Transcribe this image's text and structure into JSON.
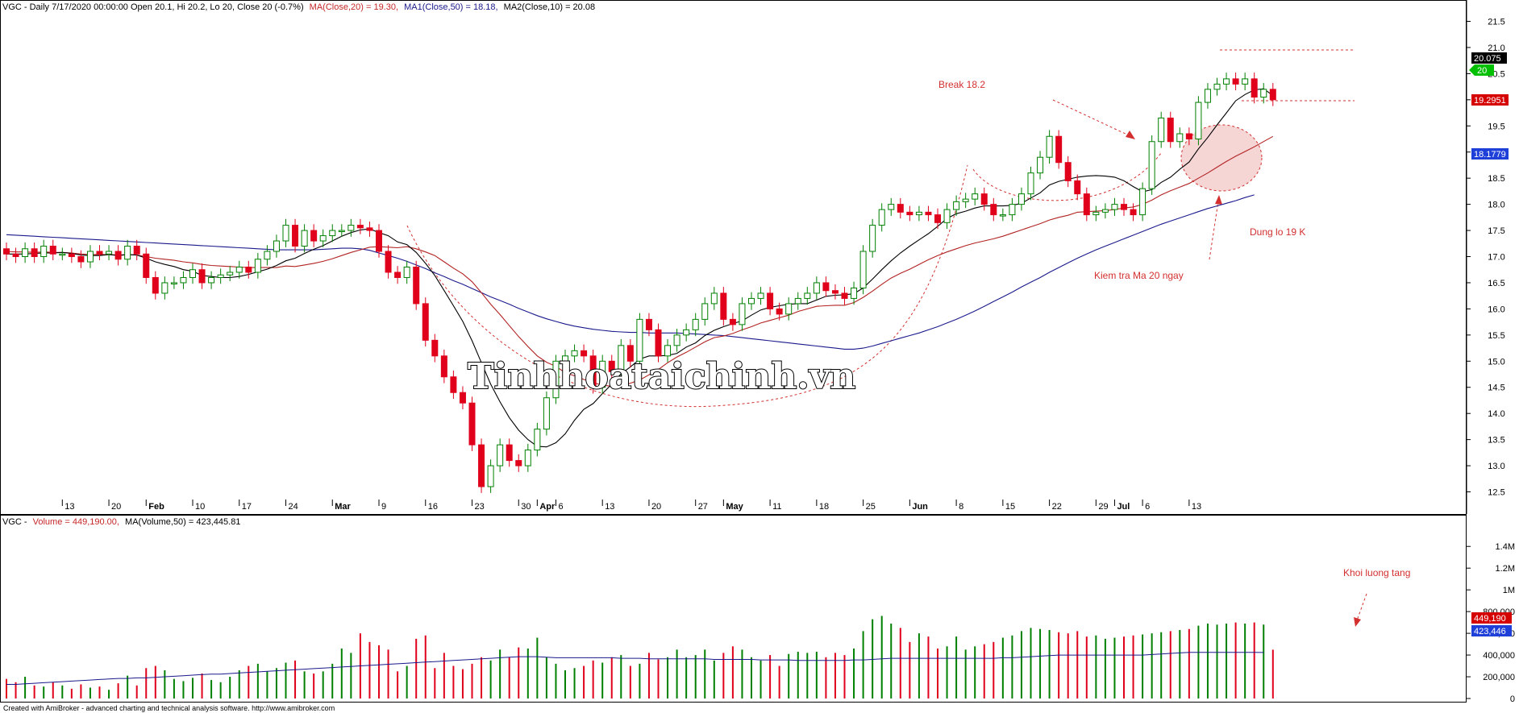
{
  "price_header": {
    "prefix": "VGC - Daily 7/17/2020 00:00:00 Open 20.1, Hi 20.2, Lo 20, Close 20 (-0.7%)",
    "ma20": "MA(Close,20) = 19.30,",
    "ma50": "MA1(Close,50) = 18.18,",
    "ma10": "MA2(Close,10) = 20.08"
  },
  "volume_header": {
    "prefix": "VGC -",
    "volume": "Volume = 449,190.00,",
    "ma": "MA(Volume,50) = 423,445.81"
  },
  "credit": "Created with AmiBroker - advanced charting and technical analysis software. http://www.amibroker.com",
  "watermark": "Tinhhoataichinh.vn",
  "annotations": {
    "break": "Break 18.2",
    "stoploss": "Dung lo 19 K",
    "ma20_test": "Kiem tra Ma 20 ngay",
    "volume_up": "Khoi luong tang"
  },
  "price_tags": {
    "ma10": "20.075",
    "close": "20",
    "ma20": "19.2951",
    "ma50": "18.1779"
  },
  "volume_tags": {
    "volume": "449,190",
    "ma": "423,446"
  },
  "x_axis_labels": [
    {
      "t": "13",
      "i": 6,
      "bold": false
    },
    {
      "t": "20",
      "i": 11,
      "bold": false
    },
    {
      "t": "Feb",
      "i": 15,
      "bold": true
    },
    {
      "t": "10",
      "i": 20,
      "bold": false
    },
    {
      "t": "17",
      "i": 25,
      "bold": false
    },
    {
      "t": "24",
      "i": 30,
      "bold": false
    },
    {
      "t": "Mar",
      "i": 35,
      "bold": true
    },
    {
      "t": "9",
      "i": 40,
      "bold": false
    },
    {
      "t": "16",
      "i": 45,
      "bold": false
    },
    {
      "t": "23",
      "i": 50,
      "bold": false
    },
    {
      "t": "30",
      "i": 55,
      "bold": false
    },
    {
      "t": "Apr",
      "i": 57,
      "bold": true
    },
    {
      "t": "6",
      "i": 59,
      "bold": false
    },
    {
      "t": "13",
      "i": 64,
      "bold": false
    },
    {
      "t": "20",
      "i": 69,
      "bold": false
    },
    {
      "t": "27",
      "i": 74,
      "bold": false
    },
    {
      "t": "May",
      "i": 77,
      "bold": true
    },
    {
      "t": "11",
      "i": 82,
      "bold": false
    },
    {
      "t": "18",
      "i": 87,
      "bold": false
    },
    {
      "t": "25",
      "i": 92,
      "bold": false
    },
    {
      "t": "Jun",
      "i": 97,
      "bold": true
    },
    {
      "t": "8",
      "i": 102,
      "bold": false
    },
    {
      "t": "15",
      "i": 107,
      "bold": false
    },
    {
      "t": "22",
      "i": 112,
      "bold": false
    },
    {
      "t": "29",
      "i": 117,
      "bold": false
    },
    {
      "t": "Jul",
      "i": 119,
      "bold": true
    },
    {
      "t": "6",
      "i": 122,
      "bold": false
    },
    {
      "t": "13",
      "i": 127,
      "bold": false
    }
  ],
  "colors": {
    "up": "#008000",
    "down": "#e0001b",
    "ma10": "#000000",
    "ma20": "#b22222",
    "ma50": "#1a1a8c",
    "annotation": "#d32f2f",
    "highlight": "#f6d5d5",
    "tag_black": "#000000",
    "tag_green": "#00c000",
    "tag_red": "#d50000",
    "tag_blue": "#1e3fd8"
  },
  "chart_data": [
    {
      "type": "candlestick",
      "ylim": [
        12.2,
        21.6
      ],
      "y_ticks": [
        "12.5",
        "13.0",
        "13.5",
        "14.0",
        "14.5",
        "15.0",
        "15.5",
        "16.0",
        "16.5",
        "17.0",
        "17.5",
        "18.0",
        "18.5",
        "19.0",
        "19.5",
        "20.0",
        "20.5",
        "21.0",
        "21.5"
      ],
      "close": [
        17.05,
        17.0,
        17.15,
        17.0,
        17.2,
        17.05,
        17.05,
        17.0,
        16.9,
        17.1,
        17.05,
        17.1,
        16.95,
        17.2,
        17.05,
        16.6,
        16.3,
        16.5,
        16.5,
        16.6,
        16.75,
        16.5,
        16.6,
        16.65,
        16.7,
        16.8,
        16.7,
        16.95,
        17.1,
        17.3,
        17.6,
        17.2,
        17.5,
        17.3,
        17.4,
        17.5,
        17.5,
        17.6,
        17.55,
        17.5,
        17.1,
        16.7,
        16.6,
        16.8,
        16.1,
        15.4,
        15.1,
        14.7,
        14.4,
        14.2,
        13.4,
        12.6,
        13.0,
        13.4,
        13.1,
        13.0,
        13.3,
        13.7,
        14.3,
        15.0,
        15.1,
        15.2,
        15.1,
        14.5,
        15.0,
        14.8,
        15.3,
        15.0,
        15.8,
        15.6,
        15.1,
        15.3,
        15.5,
        15.6,
        15.8,
        16.1,
        16.3,
        15.8,
        15.7,
        16.1,
        16.2,
        16.3,
        16.0,
        15.9,
        16.1,
        16.2,
        16.3,
        16.5,
        16.35,
        16.3,
        16.2,
        16.4,
        17.1,
        17.6,
        17.9,
        18.0,
        17.85,
        17.8,
        17.85,
        17.8,
        17.65,
        17.9,
        18.05,
        18.1,
        18.2,
        18.0,
        17.8,
        17.8,
        18.0,
        18.2,
        18.6,
        18.9,
        19.3,
        18.8,
        18.45,
        18.2,
        17.8,
        17.85,
        17.9,
        18.0,
        17.9,
        17.8,
        18.3,
        19.2,
        19.65,
        19.2,
        19.35,
        19.25,
        19.95,
        20.2,
        20.3,
        20.4,
        20.3,
        20.4,
        20.05,
        20.2,
        20.0
      ],
      "ma10": [
        17.05,
        17.05,
        17.05,
        17.06,
        17.07,
        17.07,
        17.08,
        17.06,
        17.03,
        17.02,
        17.02,
        17.04,
        17.02,
        17.04,
        17.03,
        16.97,
        16.9,
        16.85,
        16.81,
        16.75,
        16.72,
        16.64,
        16.62,
        16.6,
        16.6,
        16.62,
        16.66,
        16.71,
        16.76,
        16.83,
        16.92,
        16.97,
        17.06,
        17.14,
        17.21,
        17.3,
        17.39,
        17.46,
        17.51,
        17.53,
        17.46,
        17.4,
        17.28,
        17.23,
        17.08,
        16.87,
        16.64,
        16.35,
        16.06,
        15.76,
        15.39,
        14.97,
        14.56,
        14.22,
        13.92,
        13.68,
        13.5,
        13.37,
        13.36,
        13.44,
        13.61,
        13.87,
        14.08,
        14.19,
        14.38,
        14.56,
        14.76,
        14.89,
        15.04,
        15.1,
        15.1,
        15.11,
        15.15,
        15.27,
        15.35,
        15.49,
        15.59,
        15.66,
        15.72,
        15.77,
        15.88,
        15.98,
        16.03,
        16.06,
        16.09,
        16.1,
        16.1,
        16.17,
        16.24,
        16.26,
        16.27,
        16.29,
        16.4,
        16.57,
        16.75,
        16.92,
        17.07,
        17.2,
        17.32,
        17.44,
        17.58,
        17.73,
        17.82,
        17.87,
        17.93,
        17.97,
        17.97,
        17.97,
        17.98,
        18.02,
        18.12,
        18.22,
        18.37,
        18.44,
        18.48,
        18.52,
        18.54,
        18.55,
        18.54,
        18.52,
        18.45,
        18.34,
        18.24,
        18.28,
        18.42,
        18.52,
        18.67,
        18.81,
        19.06,
        19.28,
        19.52,
        19.75,
        19.98,
        20.1,
        20.19,
        20.21,
        20.08
      ],
      "ma20": [
        17.1,
        17.09,
        17.09,
        17.08,
        17.09,
        17.08,
        17.08,
        17.07,
        17.05,
        17.04,
        17.04,
        17.04,
        17.03,
        17.04,
        17.03,
        17.0,
        16.97,
        16.95,
        16.93,
        16.9,
        16.88,
        16.85,
        16.83,
        16.82,
        16.81,
        16.8,
        16.79,
        16.79,
        16.79,
        16.79,
        16.82,
        16.81,
        16.84,
        16.87,
        16.91,
        16.96,
        17.02,
        17.08,
        17.13,
        17.18,
        17.19,
        17.18,
        17.17,
        17.19,
        17.15,
        17.09,
        17.02,
        16.9,
        16.78,
        16.67,
        16.52,
        16.31,
        16.09,
        15.89,
        15.68,
        15.47,
        15.28,
        15.1,
        14.98,
        14.9,
        14.78,
        14.72,
        14.65,
        14.59,
        14.54,
        14.52,
        14.52,
        14.58,
        14.64,
        14.74,
        14.84,
        14.97,
        15.08,
        15.17,
        15.27,
        15.37,
        15.45,
        15.48,
        15.53,
        15.6,
        15.66,
        15.73,
        15.78,
        15.83,
        15.88,
        15.95,
        16.0,
        16.05,
        16.06,
        16.07,
        16.07,
        16.12,
        16.22,
        16.34,
        16.47,
        16.59,
        16.68,
        16.76,
        16.85,
        16.94,
        17.02,
        17.09,
        17.15,
        17.21,
        17.26,
        17.3,
        17.34,
        17.39,
        17.45,
        17.51,
        17.57,
        17.63,
        17.7,
        17.75,
        17.79,
        17.85,
        17.86,
        17.87,
        17.88,
        17.9,
        17.93,
        17.95,
        18.0,
        18.08,
        18.18,
        18.26,
        18.33,
        18.4,
        18.5,
        18.6,
        18.71,
        18.82,
        18.92,
        19.01,
        19.1,
        19.2,
        19.3
      ],
      "ma50": [
        17.42,
        17.41,
        17.4,
        17.39,
        17.38,
        17.37,
        17.36,
        17.35,
        17.34,
        17.33,
        17.32,
        17.31,
        17.3,
        17.29,
        17.28,
        17.27,
        17.26,
        17.25,
        17.24,
        17.23,
        17.22,
        17.21,
        17.2,
        17.19,
        17.18,
        17.17,
        17.16,
        17.15,
        17.14,
        17.13,
        17.13,
        17.13,
        17.13,
        17.13,
        17.14,
        17.15,
        17.16,
        17.16,
        17.15,
        17.12,
        17.07,
        17.02,
        16.97,
        16.91,
        16.84,
        16.77,
        16.69,
        16.62,
        16.54,
        16.47,
        16.39,
        16.31,
        16.23,
        16.16,
        16.09,
        16.01,
        15.94,
        15.87,
        15.81,
        15.76,
        15.71,
        15.67,
        15.64,
        15.61,
        15.59,
        15.57,
        15.56,
        15.55,
        15.55,
        15.54,
        15.54,
        15.54,
        15.54,
        15.53,
        15.52,
        15.51,
        15.5,
        15.49,
        15.47,
        15.45,
        15.43,
        15.41,
        15.39,
        15.37,
        15.35,
        15.33,
        15.31,
        15.29,
        15.27,
        15.25,
        15.23,
        15.23,
        15.25,
        15.29,
        15.34,
        15.39,
        15.44,
        15.49,
        15.54,
        15.6,
        15.66,
        15.73,
        15.8,
        15.88,
        15.96,
        16.05,
        16.14,
        16.23,
        16.32,
        16.42,
        16.51,
        16.6,
        16.7,
        16.79,
        16.88,
        16.97,
        17.05,
        17.13,
        17.2,
        17.27,
        17.34,
        17.41,
        17.48,
        17.55,
        17.62,
        17.68,
        17.74,
        17.8,
        17.86,
        17.92,
        17.97,
        18.02,
        18.07,
        18.13,
        18.18
      ]
    },
    {
      "type": "bar",
      "ylim": [
        0,
        1550000
      ],
      "y_ticks": [
        "0",
        "200,000",
        "400,000",
        "600,000",
        "800,000",
        "1M",
        "1.2M",
        "1.4M"
      ],
      "volume": [
        180000,
        150000,
        200000,
        120000,
        110000,
        150000,
        120000,
        90000,
        130000,
        100000,
        110000,
        80000,
        140000,
        210000,
        120000,
        280000,
        300000,
        260000,
        180000,
        160000,
        190000,
        230000,
        170000,
        150000,
        200000,
        260000,
        300000,
        320000,
        250000,
        280000,
        330000,
        350000,
        250000,
        230000,
        250000,
        320000,
        460000,
        420000,
        600000,
        520000,
        490000,
        450000,
        250000,
        300000,
        550000,
        580000,
        280000,
        420000,
        300000,
        270000,
        320000,
        380000,
        350000,
        450000,
        380000,
        470000,
        460000,
        560000,
        380000,
        320000,
        260000,
        280000,
        300000,
        350000,
        330000,
        380000,
        400000,
        300000,
        320000,
        420000,
        360000,
        380000,
        450000,
        380000,
        400000,
        450000,
        350000,
        420000,
        480000,
        450000,
        380000,
        350000,
        400000,
        300000,
        410000,
        430000,
        420000,
        430000,
        380000,
        420000,
        400000,
        460000,
        620000,
        730000,
        760000,
        690000,
        650000,
        520000,
        600000,
        570000,
        460000,
        480000,
        570000,
        450000,
        480000,
        500000,
        520000,
        560000,
        580000,
        620000,
        650000,
        640000,
        630000,
        610000,
        600000,
        620000,
        570000,
        580000,
        550000,
        560000,
        570000,
        580000,
        590000,
        600000,
        610000,
        620000,
        630000,
        640000,
        670000,
        690000,
        680000,
        690000,
        700000,
        690000,
        700000,
        680000,
        449190
      ],
      "volume_ma50": [
        130000,
        130000,
        135000,
        140000,
        145000,
        150000,
        155000,
        160000,
        165000,
        170000,
        175000,
        180000,
        185000,
        185000,
        190000,
        190000,
        195000,
        200000,
        205000,
        210000,
        215000,
        220000,
        225000,
        225000,
        230000,
        235000,
        240000,
        245000,
        250000,
        255000,
        260000,
        265000,
        270000,
        275000,
        280000,
        285000,
        290000,
        295000,
        300000,
        305000,
        310000,
        315000,
        320000,
        325000,
        330000,
        335000,
        340000,
        345000,
        350000,
        355000,
        360000,
        365000,
        370000,
        375000,
        380000,
        385000,
        385000,
        385000,
        380000,
        375000,
        375000,
        375000,
        375000,
        375000,
        375000,
        375000,
        370000,
        370000,
        370000,
        365000,
        365000,
        365000,
        365000,
        365000,
        365000,
        365000,
        360000,
        360000,
        360000,
        360000,
        360000,
        355000,
        355000,
        355000,
        355000,
        350000,
        350000,
        350000,
        350000,
        350000,
        350000,
        355000,
        355000,
        360000,
        365000,
        370000,
        370000,
        370000,
        370000,
        370000,
        370000,
        370000,
        370000,
        370000,
        370000,
        370000,
        370000,
        375000,
        375000,
        380000,
        385000,
        390000,
        395000,
        400000,
        400000,
        400000,
        400000,
        400000,
        400000,
        400000,
        400000,
        400000,
        400000,
        405000,
        410000,
        415000,
        420000,
        425000,
        425000,
        425000,
        425000,
        425000,
        425000,
        425000,
        424000,
        423446
      ]
    }
  ]
}
